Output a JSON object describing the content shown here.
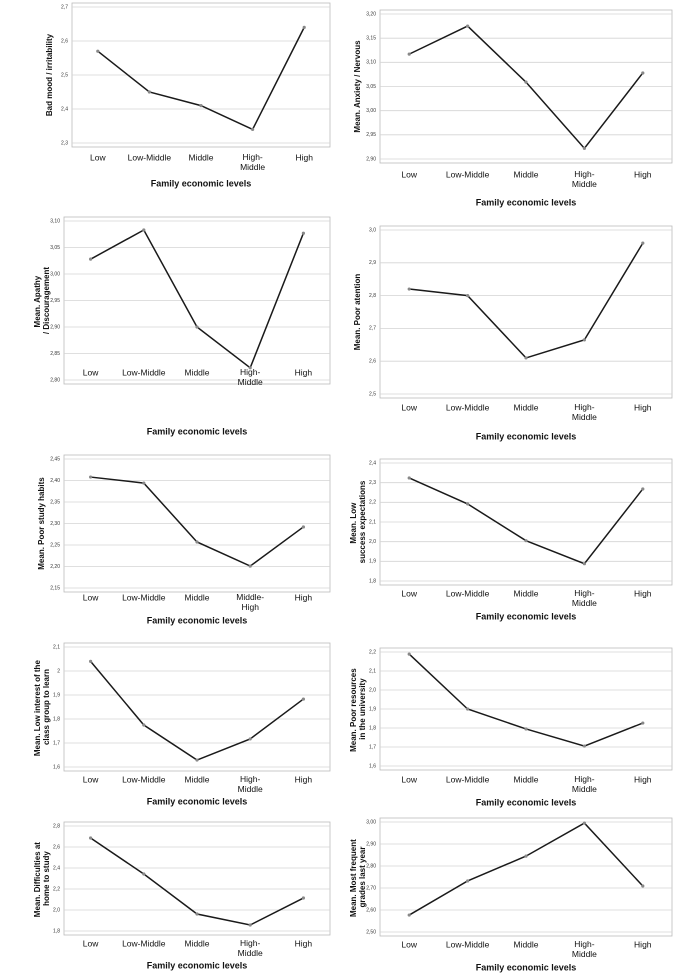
{
  "chart_data": [
    {
      "type": "line",
      "y_label": "Bad mood / irritability",
      "x_label": "Family economic levels",
      "categories": [
        "Low",
        "Low-Middle",
        "Middle",
        "High-Middle",
        "High"
      ],
      "values": [
        2.57,
        2.45,
        2.41,
        2.34,
        2.64
      ],
      "ylim": [
        2.3,
        2.7
      ],
      "yticks": [
        {
          "value": 2.3,
          "label": "2,3"
        },
        {
          "value": 2.4,
          "label": "2,4"
        },
        {
          "value": 2.5,
          "label": "2,5"
        },
        {
          "value": 2.6,
          "label": "2,6"
        },
        {
          "value": 2.7,
          "label": "2,7"
        }
      ],
      "color": "#1a1a1a",
      "grid": true
    },
    {
      "type": "line",
      "y_label": "Mean. Anxiety / Nervous",
      "x_label": "Family economic levels",
      "categories": [
        "Low",
        "Low-Middle",
        "Middle",
        "High-Middle",
        "High"
      ],
      "values": [
        3.117,
        3.175,
        3.059,
        2.922,
        3.078
      ],
      "ylim": [
        2.9,
        3.2
      ],
      "yticks": [
        {
          "value": 2.9,
          "label": "2,90"
        },
        {
          "value": 2.95,
          "label": "2,95"
        },
        {
          "value": 3.0,
          "label": "3,00"
        },
        {
          "value": 3.05,
          "label": "3,05"
        },
        {
          "value": 3.1,
          "label": "3,10"
        },
        {
          "value": 3.15,
          "label": "3,15"
        },
        {
          "value": 3.2,
          "label": "3,20"
        }
      ],
      "color": "#1a1a1a",
      "grid": true
    },
    {
      "type": "line",
      "y_label": "Mean. Apathy / Discouragement",
      "x_label": "Family economic levels",
      "categories": [
        "Low",
        "Low-Middle",
        "Middle",
        "High-Middle",
        "High"
      ],
      "values": [
        3.028,
        3.083,
        2.9,
        2.823,
        3.077
      ],
      "ylim": [
        2.8,
        3.1
      ],
      "yticks": [
        {
          "value": 2.8,
          "label": "2,80"
        },
        {
          "value": 2.85,
          "label": "2,85"
        },
        {
          "value": 2.9,
          "label": "2,90"
        },
        {
          "value": 2.95,
          "label": "2,95"
        },
        {
          "value": 3.0,
          "label": "3,00"
        },
        {
          "value": 3.05,
          "label": "3,05"
        },
        {
          "value": 3.1,
          "label": "3,10"
        }
      ],
      "color": "#1a1a1a",
      "grid": true
    },
    {
      "type": "line",
      "y_label": "Mean. Poor atention",
      "x_label": "Family economic levels",
      "categories": [
        "Low",
        "Low-Middle",
        "Middle",
        "High-Middle",
        "High"
      ],
      "values": [
        2.82,
        2.8,
        2.61,
        2.665,
        2.96
      ],
      "ylim": [
        2.5,
        3.0
      ],
      "yticks": [
        {
          "value": 2.5,
          "label": "2,5"
        },
        {
          "value": 2.6,
          "label": "2,6"
        },
        {
          "value": 2.7,
          "label": "2,7"
        },
        {
          "value": 2.8,
          "label": "2,8"
        },
        {
          "value": 2.9,
          "label": "2,9"
        },
        {
          "value": 3.0,
          "label": "3,0"
        }
      ],
      "color": "#1a1a1a",
      "grid": true
    },
    {
      "type": "line",
      "y_label": "Mean. Poor study habits",
      "x_label": "Family economic levels",
      "categories": [
        "Low",
        "Low-Middle",
        "Middle",
        "Middle-High",
        "High"
      ],
      "values": [
        2.408,
        2.394,
        2.257,
        2.201,
        2.292
      ],
      "ylim": [
        2.15,
        2.45
      ],
      "yticks": [
        {
          "value": 2.15,
          "label": "2,15"
        },
        {
          "value": 2.2,
          "label": "2,20"
        },
        {
          "value": 2.25,
          "label": "2,25"
        },
        {
          "value": 2.3,
          "label": "2,30"
        },
        {
          "value": 2.35,
          "label": "2,35"
        },
        {
          "value": 2.4,
          "label": "2,40"
        },
        {
          "value": 2.45,
          "label": "2,45"
        }
      ],
      "color": "#1a1a1a",
      "grid": true
    },
    {
      "type": "line",
      "y_label": "Mean. Low success expectations",
      "x_label": "Family economic levels",
      "categories": [
        "Low",
        "Low-Middle",
        "Middle",
        "High-Middle",
        "High"
      ],
      "values": [
        2.324,
        2.192,
        2.005,
        1.888,
        2.268
      ],
      "ylim": [
        1.8,
        2.4
      ],
      "yticks": [
        {
          "value": 1.8,
          "label": "1,8"
        },
        {
          "value": 1.9,
          "label": "1,9"
        },
        {
          "value": 2.0,
          "label": "2,0"
        },
        {
          "value": 2.1,
          "label": "2,1"
        },
        {
          "value": 2.2,
          "label": "2,2"
        },
        {
          "value": 2.3,
          "label": "2,3"
        },
        {
          "value": 2.4,
          "label": "2,4"
        }
      ],
      "color": "#1a1a1a",
      "grid": true
    },
    {
      "type": "line",
      "y_label": "Mean. Low interest of the class group to learn",
      "x_label": "Family economic levels",
      "categories": [
        "Low",
        "Low-Middle",
        "Middle",
        "High-Middle",
        "High"
      ],
      "values": [
        2.04,
        1.775,
        1.629,
        1.717,
        1.883
      ],
      "ylim": [
        1.6,
        2.1
      ],
      "yticks": [
        {
          "value": 1.6,
          "label": "1,6"
        },
        {
          "value": 1.7,
          "label": "1,7"
        },
        {
          "value": 1.8,
          "label": "1,8"
        },
        {
          "value": 1.9,
          "label": "1,9"
        },
        2,
        {
          "value": 2.1,
          "label": "2,1"
        }
      ],
      "color": "#1a1a1a",
      "grid": true
    },
    {
      "type": "line",
      "y_label": "Mean. Poor resources in the university",
      "x_label": "Family economic levels",
      "categories": [
        "Low",
        "Low-Middle",
        "Middle",
        "High-Middle",
        "High"
      ],
      "values": [
        2.189,
        1.9,
        1.795,
        1.705,
        1.826
      ],
      "ylim": [
        1.6,
        2.2
      ],
      "yticks": [
        {
          "value": 1.6,
          "label": "1,6"
        },
        {
          "value": 1.7,
          "label": "1,7"
        },
        {
          "value": 1.8,
          "label": "1,8"
        },
        {
          "value": 1.9,
          "label": "1,9"
        },
        {
          "value": 2.0,
          "label": "2,0"
        },
        {
          "value": 2.1,
          "label": "2,1"
        },
        {
          "value": 2.2,
          "label": "2,2"
        }
      ],
      "color": "#1a1a1a",
      "grid": true
    },
    {
      "type": "line",
      "y_label": "Mean. Difficulties at home to study",
      "x_label": "Family economic levels",
      "categories": [
        "Low",
        "Low-Middle",
        "Middle",
        "High-Middle",
        "High"
      ],
      "values": [
        2.686,
        2.343,
        1.962,
        1.857,
        2.114
      ],
      "ylim": [
        1.8,
        2.8
      ],
      "yticks": [
        {
          "value": 1.8,
          "label": "1,8"
        },
        {
          "value": 2.0,
          "label": "2,0"
        },
        {
          "value": 2.2,
          "label": "2,2"
        },
        {
          "value": 2.4,
          "label": "2,4"
        },
        {
          "value": 2.6,
          "label": "2,6"
        },
        {
          "value": 2.8,
          "label": "2,8"
        }
      ],
      "color": "#1a1a1a",
      "grid": true
    },
    {
      "type": "line",
      "y_label": "Mean. Most frequent grades last year",
      "x_label": "Family economic levels",
      "categories": [
        "Low",
        "Low-Middle",
        "Middle",
        "High-Middle",
        "High"
      ],
      "values": [
        2.577,
        2.732,
        2.845,
        2.995,
        2.709
      ],
      "ylim": [
        2.5,
        3.0
      ],
      "yticks": [
        {
          "value": 2.5,
          "label": "2,50"
        },
        {
          "value": 2.6,
          "label": "2,60"
        },
        {
          "value": 2.7,
          "label": "2,70"
        },
        {
          "value": 2.8,
          "label": "2,80"
        },
        {
          "value": 2.9,
          "label": "2,90"
        },
        {
          "value": 3.0,
          "label": "3,00"
        }
      ],
      "color": "#1a1a1a",
      "grid": true
    }
  ]
}
